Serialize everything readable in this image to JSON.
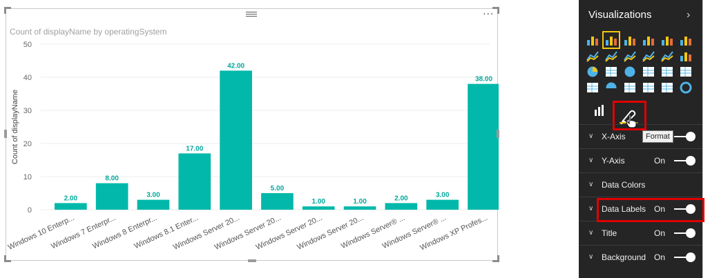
{
  "chart": {
    "title": "Count of displayName by operatingSystem",
    "more_label": "···"
  },
  "chart_data": {
    "type": "bar",
    "title": "Count of displayName by operatingSystem",
    "xlabel": "",
    "ylabel": "Count of displayName",
    "ylim": [
      0,
      50
    ],
    "yticks": [
      0,
      10,
      20,
      30,
      40,
      50
    ],
    "grid": true,
    "legend": "none",
    "bar_color": "#01b8aa",
    "categories": [
      "Windows 10 Enterp...",
      "Windows 7 Enterpr...",
      "Windows 8 Enterpr...",
      "Windows 8.1 Enter...",
      "Windows Server 20...",
      "Windows Server 20...",
      "Windows Server 20...",
      "Windows Server 20...",
      "Windows Server® ...",
      "Windows Server® ...",
      "Windows XP Profes..."
    ],
    "values": [
      2,
      8,
      3,
      17,
      42,
      5,
      1,
      1,
      2,
      3,
      38
    ],
    "data_labels": [
      "2.00",
      "8.00",
      "3.00",
      "17.00",
      "42.00",
      "5.00",
      "1.00",
      "1.00",
      "2.00",
      "3.00",
      "38.00"
    ]
  },
  "pane": {
    "title": "Visualizations",
    "chevron": "›",
    "tooltip": "Format",
    "sections": [
      {
        "label": "X-Axis",
        "state": "",
        "toggle": true
      },
      {
        "label": "Y-Axis",
        "state": "On",
        "toggle": true
      },
      {
        "label": "Data Colors",
        "state": "",
        "toggle": false
      },
      {
        "label": "Data Labels",
        "state": "On",
        "toggle": true
      },
      {
        "label": "Title",
        "state": "On",
        "toggle": true
      },
      {
        "label": "Background",
        "state": "On",
        "toggle": true
      }
    ],
    "viz_icons": [
      "stacked-bar-icon",
      "stacked-column-icon",
      "clustered-bar-icon",
      "clustered-column-icon",
      "100-bar-icon",
      "100-column-icon",
      "line-chart-icon",
      "area-chart-icon",
      "stacked-area-icon",
      "line-column-icon",
      "line-clustered-column-icon",
      "waterfall-icon",
      "pie-chart-icon",
      "treemap-icon",
      "map-icon",
      "table-icon",
      "matrix-icon",
      "filled-map-icon",
      "funnel-icon",
      "gauge-icon",
      "multi-row-card-icon",
      "card-icon",
      "slicer-icon",
      "donut-icon"
    ],
    "selected_viz": "stacked-column-icon"
  },
  "colors": {
    "accent": "#f2c811",
    "highlight": "#e00000",
    "bar": "#01b8aa",
    "pane_bg": "#252526"
  }
}
